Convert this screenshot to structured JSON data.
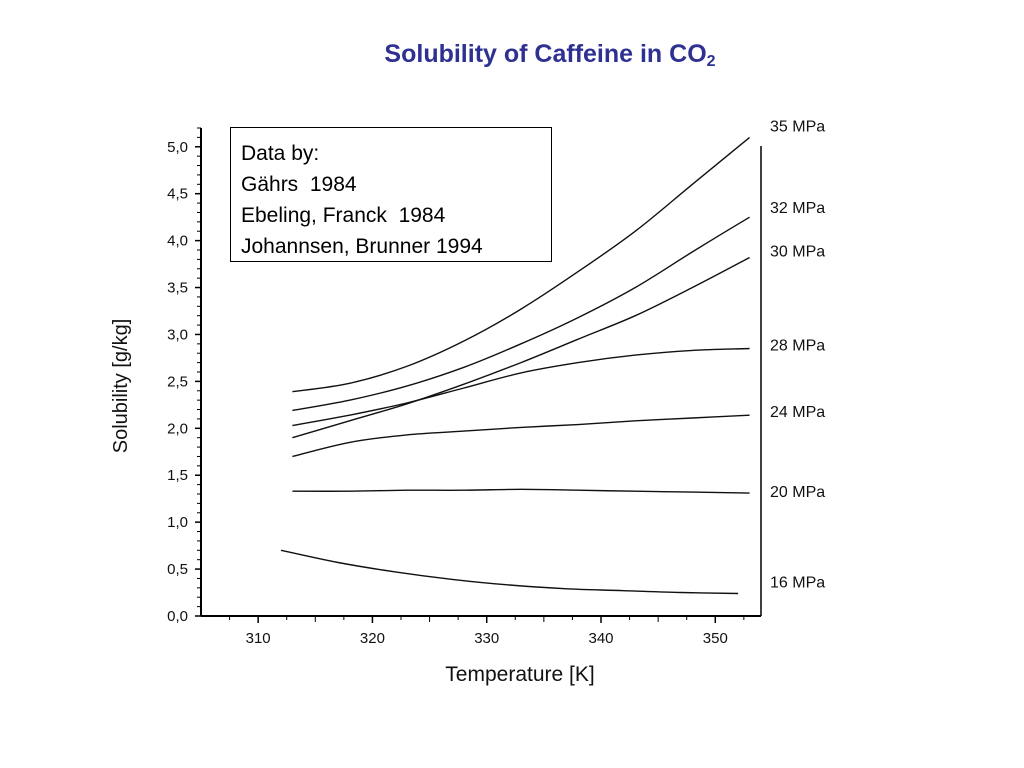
{
  "slide": {
    "title_main": "Solubility of Caffeine in CO",
    "title_sub": "2"
  },
  "note_box": {
    "heading": "Data by:",
    "lines": [
      "Gährs  1984",
      "Ebeling, Franck  1984",
      "Johannsen, Brunner 1994"
    ]
  },
  "chart_data": {
    "type": "line",
    "xlabel": "Temperature [K]",
    "ylabel": "Solubility [g/kg]",
    "xlim": [
      305,
      354
    ],
    "ylim": [
      0,
      5.2
    ],
    "xticks": [
      310,
      320,
      330,
      340,
      350
    ],
    "xtick_labels": [
      "310",
      "320",
      "330",
      "340",
      "350"
    ],
    "yticks": [
      0,
      0.5,
      1.0,
      1.5,
      2.0,
      2.5,
      3.0,
      3.5,
      4.0,
      4.5,
      5.0
    ],
    "ytick_labels": [
      "0,0",
      "0,5",
      "1,0",
      "1,5",
      "2,0",
      "2,5",
      "3,0",
      "3,5",
      "4,0",
      "4,5",
      "5,0"
    ],
    "grid": false,
    "series": [
      {
        "name": "35 MPa",
        "x": [
          313,
          318,
          323,
          328,
          333,
          338,
          343,
          348,
          353
        ],
        "y": [
          2.39,
          2.48,
          2.66,
          2.93,
          3.27,
          3.67,
          4.1,
          4.6,
          5.1
        ]
      },
      {
        "name": "32 MPa",
        "x": [
          313,
          318,
          323,
          328,
          333,
          338,
          343,
          348,
          353
        ],
        "y": [
          2.19,
          2.3,
          2.45,
          2.65,
          2.9,
          3.18,
          3.5,
          3.88,
          4.25
        ]
      },
      {
        "name": "30 MPa",
        "x": [
          313,
          318,
          323,
          328,
          333,
          338,
          343,
          348,
          353
        ],
        "y": [
          1.9,
          2.08,
          2.26,
          2.47,
          2.7,
          2.95,
          3.2,
          3.5,
          3.82
        ]
      },
      {
        "name": "28 MPa",
        "x": [
          313,
          318,
          323,
          328,
          333,
          338,
          343,
          348,
          353
        ],
        "y": [
          2.03,
          2.14,
          2.27,
          2.43,
          2.59,
          2.7,
          2.78,
          2.83,
          2.85
        ]
      },
      {
        "name": "24 MPa",
        "x": [
          313,
          318,
          323,
          328,
          333,
          338,
          343,
          348,
          353
        ],
        "y": [
          1.7,
          1.85,
          1.93,
          1.97,
          2.01,
          2.04,
          2.08,
          2.11,
          2.14
        ]
      },
      {
        "name": "20 MPa",
        "x": [
          313,
          318,
          323,
          328,
          333,
          338,
          343,
          348,
          353
        ],
        "y": [
          1.33,
          1.33,
          1.34,
          1.34,
          1.35,
          1.34,
          1.33,
          1.32,
          1.31
        ]
      },
      {
        "name": "16 MPa",
        "x": [
          312,
          317,
          322,
          327,
          332,
          337,
          342,
          347,
          352
        ],
        "y": [
          0.7,
          0.57,
          0.47,
          0.39,
          0.33,
          0.29,
          0.27,
          0.25,
          0.24
        ]
      }
    ]
  }
}
